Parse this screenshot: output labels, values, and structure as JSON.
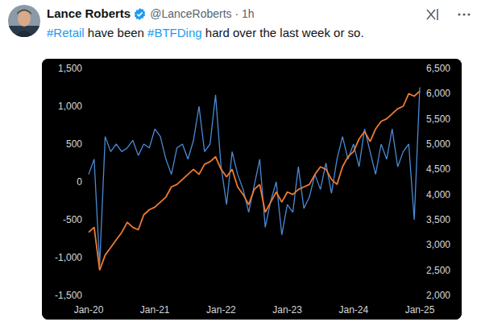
{
  "tweet": {
    "name": "Lance Roberts",
    "byline": "@LanceRoberts · 1h",
    "text": "#Retail have been #BTFDing hard over the last week or so."
  },
  "chart_data": {
    "type": "line",
    "categories": [
      "Jan-20",
      null,
      null,
      null,
      null,
      null,
      null,
      null,
      null,
      null,
      null,
      null,
      "Jan-21",
      null,
      null,
      null,
      null,
      null,
      null,
      null,
      null,
      null,
      null,
      null,
      "Jan-22",
      null,
      null,
      null,
      null,
      null,
      null,
      null,
      null,
      null,
      null,
      null,
      "Jan-23",
      null,
      null,
      null,
      null,
      null,
      null,
      null,
      null,
      null,
      null,
      null,
      "Jan-24",
      null,
      null,
      null,
      null,
      null,
      null,
      null,
      null,
      null,
      null,
      null,
      "Jan-25"
    ],
    "series": [
      {
        "color": "#4a8ad4",
        "values": [
          100,
          300,
          -1100,
          600,
          400,
          500,
          400,
          450,
          550,
          350,
          500,
          450,
          700,
          600,
          300,
          100,
          450,
          500,
          300,
          550,
          1000,
          400,
          500,
          1150,
          200,
          -300,
          400,
          100,
          -100,
          -400,
          -50,
          300,
          -600,
          -250,
          0,
          -700,
          -300,
          -400,
          200,
          -350,
          -200,
          100,
          -100,
          250,
          -150,
          300,
          600,
          300,
          500,
          200,
          700,
          400,
          100,
          500,
          300,
          700,
          200,
          400,
          500,
          -500,
          1250
        ]
      },
      {
        "color": "#ee7b30",
        "axis": "y2",
        "values": [
          3250,
          3350,
          2500,
          2800,
          2950,
          3100,
          3250,
          3450,
          3350,
          3300,
          3600,
          3700,
          3750,
          3850,
          3950,
          4150,
          4200,
          4300,
          4400,
          4500,
          4400,
          4600,
          4650,
          4750,
          4500,
          4350,
          4500,
          4150,
          4000,
          3800,
          4100,
          4200,
          3650,
          3850,
          4050,
          3850,
          4050,
          4000,
          4100,
          4150,
          4200,
          4400,
          4550,
          4500,
          4300,
          4200,
          4550,
          4750,
          4850,
          5100,
          5250,
          5050,
          5300,
          5450,
          5500,
          5600,
          5700,
          5750,
          6000,
          5950,
          6050
        ]
      }
    ],
    "ylim": [
      -1500,
      1500
    ],
    "yticks": [
      {
        "value": -1500,
        "label": "-1,500"
      },
      {
        "value": -1000,
        "label": "-1,000"
      },
      -500,
      0,
      500,
      {
        "value": 1000,
        "label": "1,000"
      },
      {
        "value": 1500,
        "label": "1,500"
      }
    ],
    "y2lim": [
      2000,
      6500
    ],
    "y2ticks": [
      {
        "value": 2000,
        "label": "2,000"
      },
      {
        "value": 2500,
        "label": "2,500"
      },
      {
        "value": 3000,
        "label": "3,000"
      },
      {
        "value": 3500,
        "label": "3,500"
      },
      {
        "value": 4000,
        "label": "4,000"
      },
      {
        "value": 4500,
        "label": "4,500"
      },
      {
        "value": 5000,
        "label": "5,000"
      },
      {
        "value": 5500,
        "label": "5,500"
      },
      {
        "value": 6000,
        "label": "6,000"
      },
      {
        "value": 6500,
        "label": "6,500"
      }
    ],
    "grid": false
  }
}
